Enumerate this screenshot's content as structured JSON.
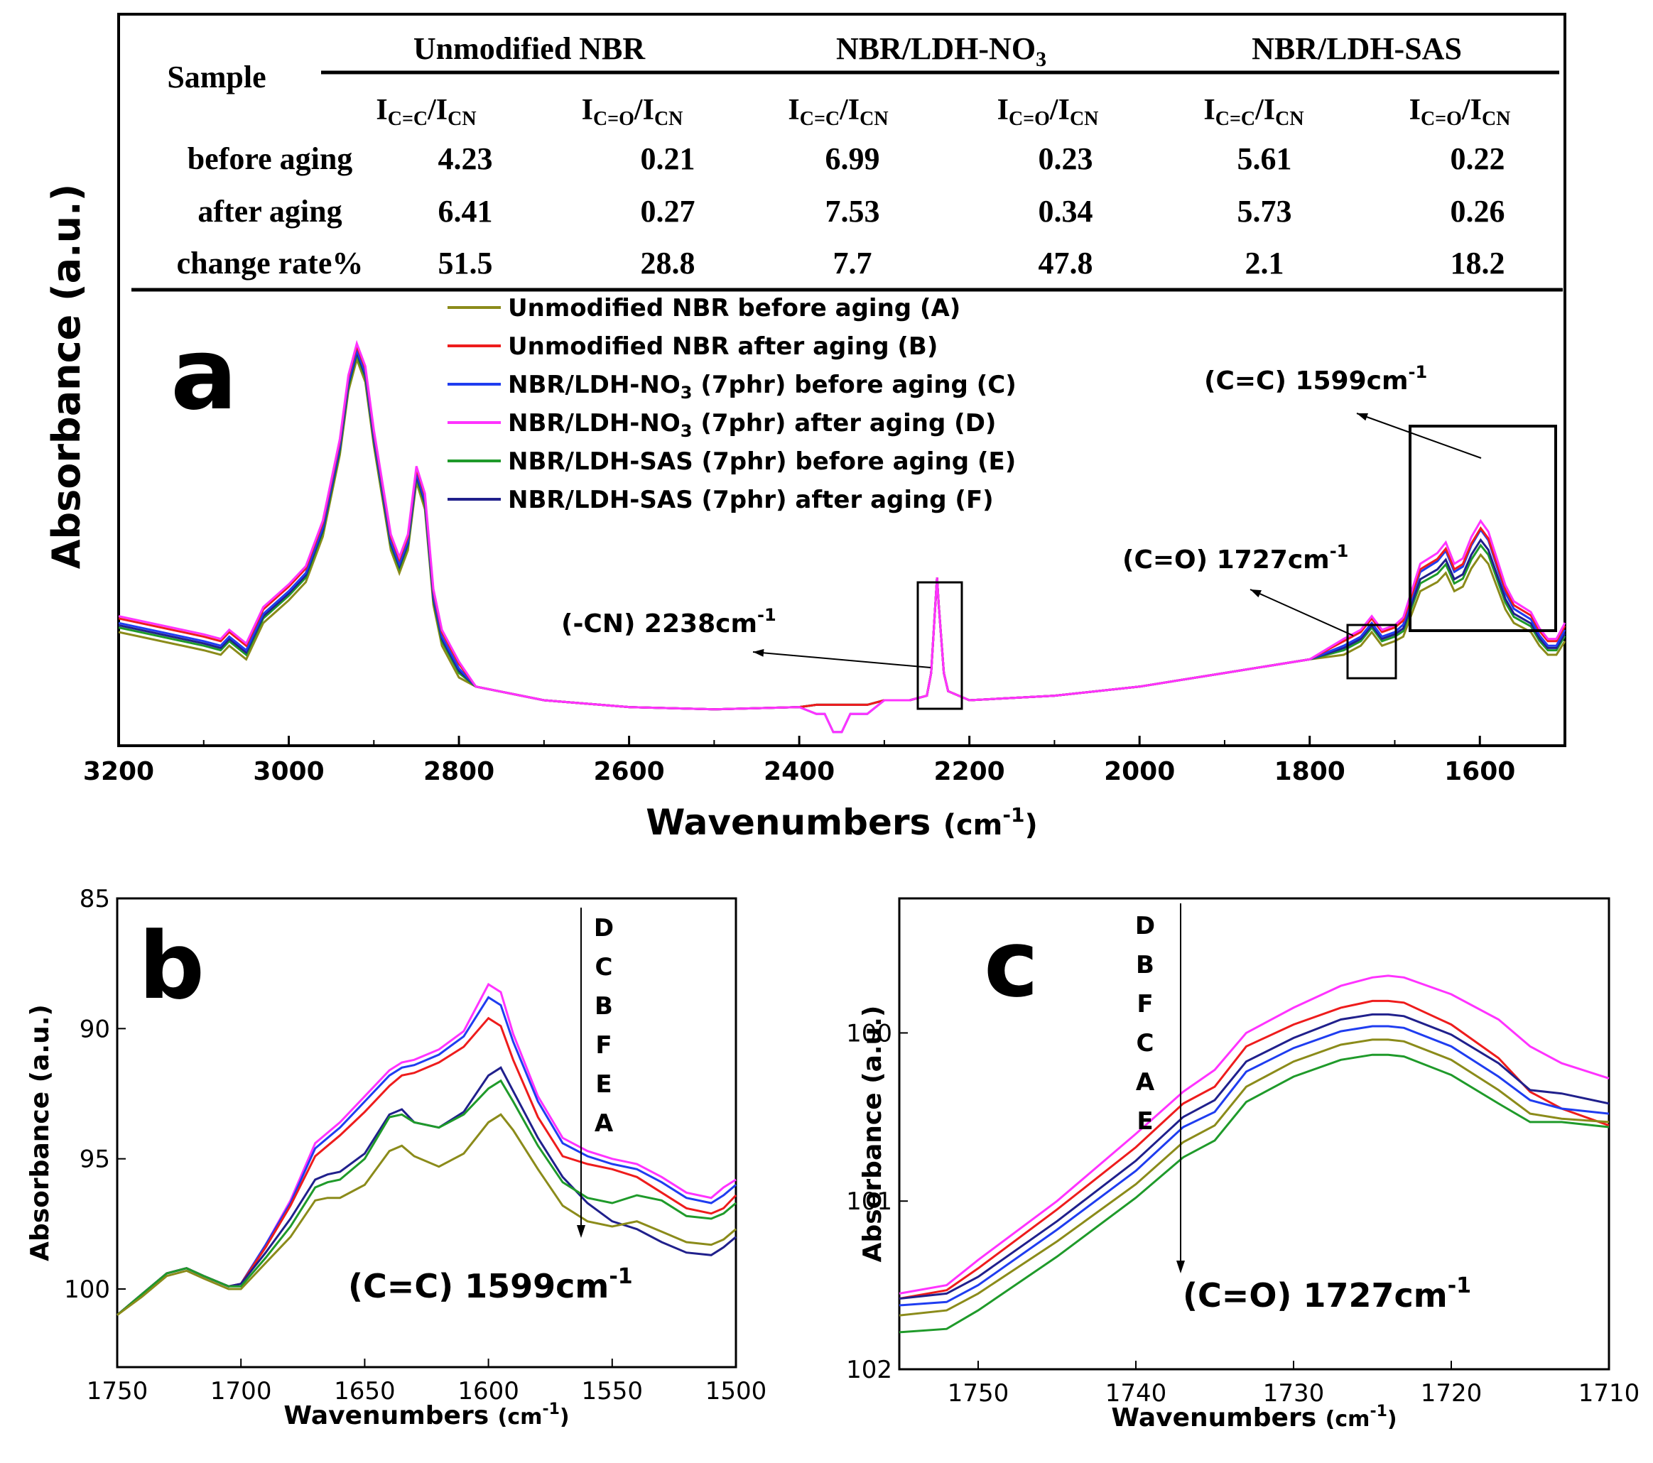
{
  "table": {
    "sample_label": "Sample",
    "groups": [
      "Unmodified NBR",
      "NBR/LDH-NO3",
      "NBR/LDH-SAS"
    ],
    "col_a": {
      "main": "I",
      "sub1": "C=C",
      "slash": "/",
      "main2": "I",
      "sub2": "CN"
    },
    "col_b": {
      "main": "I",
      "sub1": "C=O",
      "slash": "/",
      "main2": "I",
      "sub2": "CN"
    },
    "rows": [
      {
        "label": "before aging",
        "values": [
          "4.23",
          "0.21",
          "6.99",
          "0.23",
          "5.61",
          "0.22"
        ]
      },
      {
        "label": "after aging",
        "values": [
          "6.41",
          "0.27",
          "7.53",
          "0.34",
          "5.73",
          "0.26"
        ]
      },
      {
        "label": "change rate%",
        "values": [
          "51.5",
          "28.8",
          "7.7",
          "47.8",
          "2.1",
          "18.2"
        ]
      }
    ]
  },
  "series_colors": {
    "A": "#8b8b1a",
    "B": "#ee1c1c",
    "C": "#1f3df0",
    "D": "#ff33ff",
    "E": "#1f9a2a",
    "F": "#20208c"
  },
  "chart_data": [
    {
      "id": "a",
      "panel_label": "a",
      "type": "line",
      "xlabel": "Wavenumbers",
      "xunit": "(cm-1)",
      "ylabel": "Absorbance (a.u.)",
      "xlim": [
        3200,
        1500
      ],
      "ylim": [
        0,
        1
      ],
      "xticks": [
        3200,
        3000,
        2800,
        2600,
        2400,
        2200,
        2000,
        1800,
        1600
      ],
      "legend": [
        {
          "key": "A",
          "label": "Unmodified NBR before aging (A)"
        },
        {
          "key": "B",
          "label": "Unmodified NBR after aging  (B)"
        },
        {
          "key": "C",
          "label": "NBR/LDH-NO3 (7phr) before aging  (C)"
        },
        {
          "key": "D",
          "label": "NBR/LDH-NO3 (7phr) after aging (D)"
        },
        {
          "key": "E",
          "label": "NBR/LDH-SAS (7phr) before aging  (E)"
        },
        {
          "key": "F",
          "label": "NBR/LDH-SAS (7phr) after aging  (F)"
        }
      ],
      "annotations": [
        {
          "text": "(-CN)   2238cm-1",
          "peak": 2238
        },
        {
          "text": "(C=O) 1727cm-1",
          "peak": 1727
        },
        {
          "text": "(C=C) 1599cm-1",
          "peak": 1599
        }
      ],
      "base_x": [
        3200,
        3100,
        3080,
        3070,
        3050,
        3030,
        3000,
        2980,
        2960,
        2940,
        2930,
        2920,
        2910,
        2900,
        2880,
        2870,
        2860,
        2850,
        2840,
        2830,
        2820,
        2800,
        2780,
        2700,
        2600,
        2500,
        2400,
        2380,
        2370,
        2360,
        2350,
        2340,
        2320,
        2300,
        2270,
        2250,
        2245,
        2240,
        2238,
        2236,
        2230,
        2225,
        2200,
        2100,
        2000,
        1900,
        1800,
        1760,
        1740,
        1727,
        1715,
        1700,
        1690,
        1680,
        1670,
        1660,
        1650,
        1640,
        1630,
        1620,
        1610,
        1599,
        1590,
        1580,
        1570,
        1560,
        1550,
        1540,
        1530,
        1520,
        1510,
        1500
      ],
      "base_y": [
        0.27,
        0.23,
        0.22,
        0.24,
        0.21,
        0.29,
        0.34,
        0.38,
        0.48,
        0.66,
        0.8,
        0.87,
        0.82,
        0.68,
        0.45,
        0.4,
        0.45,
        0.6,
        0.54,
        0.33,
        0.24,
        0.17,
        0.13,
        0.1,
        0.085,
        0.08,
        0.085,
        0.09,
        0.09,
        0.09,
        0.09,
        0.09,
        0.09,
        0.1,
        0.1,
        0.11,
        0.16,
        0.31,
        0.37,
        0.31,
        0.16,
        0.12,
        0.1,
        0.11,
        0.13,
        0.16,
        0.19,
        0.22,
        0.24,
        0.27,
        0.24,
        0.25,
        0.26,
        0.31,
        0.36,
        0.37,
        0.38,
        0.4,
        0.36,
        0.37,
        0.41,
        0.44,
        0.42,
        0.37,
        0.32,
        0.29,
        0.28,
        0.27,
        0.24,
        0.22,
        0.22,
        0.25
      ],
      "peak_gain": {
        "A": 0.0,
        "B": 0.13,
        "C": 0.16,
        "D": 0.18,
        "E": 0.05,
        "F": 0.08
      },
      "offsets": {
        "A": -0.02,
        "B": 0.01,
        "C": 0.0,
        "D": 0.015,
        "E": -0.01,
        "F": -0.005
      }
    },
    {
      "id": "b",
      "panel_label": "b",
      "type": "line",
      "xlabel": "Wavenumbers",
      "xunit": "(cm-1)",
      "ylabel": "Absorbance (a.u.)",
      "xlim": [
        1750,
        1500
      ],
      "ylim": [
        103,
        85
      ],
      "xticks": [
        1750,
        1700,
        1650,
        1600,
        1550,
        1500
      ],
      "yticks": [
        85,
        90,
        95,
        100
      ],
      "order_letters": [
        "D",
        "C",
        "B",
        "F",
        "E",
        "A"
      ],
      "annotation": "(C=C) 1599cm-1",
      "x": [
        1750,
        1740,
        1730,
        1722,
        1715,
        1705,
        1700,
        1690,
        1680,
        1670,
        1665,
        1660,
        1650,
        1640,
        1635,
        1630,
        1620,
        1610,
        1600,
        1595,
        1590,
        1580,
        1570,
        1560,
        1550,
        1540,
        1530,
        1520,
        1510,
        1505,
        1500
      ],
      "series": [
        {
          "name": "D",
          "values": [
            101.0,
            100.2,
            99.4,
            99.2,
            99.5,
            99.9,
            99.8,
            98.3,
            96.6,
            94.4,
            94.0,
            93.6,
            92.6,
            91.6,
            91.3,
            91.2,
            90.8,
            90.1,
            88.3,
            88.6,
            90.2,
            92.6,
            94.2,
            94.7,
            95.0,
            95.2,
            95.7,
            96.3,
            96.5,
            96.1,
            95.8
          ]
        },
        {
          "name": "C",
          "values": [
            101.0,
            100.2,
            99.4,
            99.2,
            99.5,
            99.9,
            99.8,
            98.3,
            96.7,
            94.6,
            94.2,
            93.8,
            92.8,
            91.8,
            91.5,
            91.4,
            91.0,
            90.3,
            88.8,
            89.1,
            90.5,
            92.8,
            94.4,
            94.9,
            95.2,
            95.4,
            95.9,
            96.5,
            96.7,
            96.4,
            96.0
          ]
        },
        {
          "name": "B",
          "values": [
            101.0,
            100.2,
            99.4,
            99.2,
            99.5,
            99.9,
            99.8,
            98.4,
            96.8,
            94.9,
            94.5,
            94.1,
            93.2,
            92.2,
            91.8,
            91.7,
            91.3,
            90.7,
            89.6,
            89.9,
            91.2,
            93.4,
            94.9,
            95.2,
            95.4,
            95.7,
            96.3,
            96.9,
            97.1,
            96.9,
            96.4
          ]
        },
        {
          "name": "F",
          "values": [
            101.0,
            100.2,
            99.4,
            99.2,
            99.5,
            99.9,
            99.8,
            98.6,
            97.3,
            95.8,
            95.6,
            95.5,
            94.8,
            93.3,
            93.1,
            93.6,
            93.8,
            93.2,
            91.8,
            91.5,
            92.4,
            94.2,
            95.7,
            96.7,
            97.4,
            97.7,
            98.2,
            98.6,
            98.7,
            98.4,
            98.0
          ]
        },
        {
          "name": "E",
          "values": [
            101.0,
            100.2,
            99.4,
            99.2,
            99.5,
            99.9,
            99.9,
            98.8,
            97.6,
            96.1,
            95.9,
            95.8,
            95.0,
            93.4,
            93.3,
            93.6,
            93.8,
            93.3,
            92.3,
            92.0,
            92.8,
            94.5,
            95.9,
            96.5,
            96.7,
            96.4,
            96.6,
            97.2,
            97.3,
            97.1,
            96.7
          ]
        },
        {
          "name": "A",
          "values": [
            101.0,
            100.3,
            99.5,
            99.3,
            99.6,
            100.0,
            100.0,
            99.0,
            98.0,
            96.6,
            96.5,
            96.5,
            96.0,
            94.7,
            94.5,
            94.9,
            95.3,
            94.8,
            93.6,
            93.3,
            93.9,
            95.4,
            96.8,
            97.4,
            97.6,
            97.4,
            97.8,
            98.2,
            98.3,
            98.1,
            97.7
          ]
        }
      ]
    },
    {
      "id": "c",
      "panel_label": "c",
      "type": "line",
      "xlabel": "Wavenumbers",
      "xunit": "(cm-1)",
      "ylabel": "Absorbance (a.u.)",
      "xlim": [
        1755,
        1710
      ],
      "ylim": [
        102,
        99.2
      ],
      "xticks": [
        1750,
        1740,
        1730,
        1720,
        1710
      ],
      "yticks": [
        100,
        101,
        102
      ],
      "order_letters": [
        "D",
        "B",
        "F",
        "C",
        "A",
        "E"
      ],
      "annotation": "(C=O) 1727cm-1",
      "x": [
        1755,
        1752,
        1750,
        1745,
        1740,
        1737,
        1735,
        1733,
        1730,
        1727,
        1725,
        1724,
        1723,
        1720,
        1717,
        1715,
        1713,
        1710
      ],
      "series": [
        {
          "name": "D",
          "values": [
            101.55,
            101.5,
            101.35,
            101.0,
            100.6,
            100.35,
            100.22,
            100.0,
            99.85,
            99.72,
            99.67,
            99.66,
            99.67,
            99.77,
            99.92,
            100.08,
            100.18,
            100.27
          ]
        },
        {
          "name": "B",
          "values": [
            101.58,
            101.53,
            101.4,
            101.05,
            100.68,
            100.42,
            100.32,
            100.08,
            99.95,
            99.85,
            99.81,
            99.81,
            99.82,
            99.95,
            100.15,
            100.35,
            100.45,
            100.55
          ]
        },
        {
          "name": "F",
          "values": [
            101.58,
            101.55,
            101.45,
            101.12,
            100.76,
            100.5,
            100.4,
            100.17,
            100.03,
            99.92,
            99.89,
            99.89,
            99.9,
            100.01,
            100.18,
            100.34,
            100.36,
            100.42
          ]
        },
        {
          "name": "C",
          "values": [
            101.62,
            101.6,
            101.5,
            101.17,
            100.82,
            100.56,
            100.47,
            100.23,
            100.09,
            99.99,
            99.96,
            99.96,
            99.97,
            100.08,
            100.26,
            100.4,
            100.45,
            100.48
          ]
        },
        {
          "name": "A",
          "values": [
            101.68,
            101.65,
            101.55,
            101.24,
            100.9,
            100.65,
            100.55,
            100.32,
            100.17,
            100.07,
            100.04,
            100.04,
            100.05,
            100.16,
            100.34,
            100.48,
            100.51,
            100.53
          ]
        },
        {
          "name": "E",
          "values": [
            101.78,
            101.76,
            101.65,
            101.33,
            100.98,
            100.74,
            100.64,
            100.41,
            100.26,
            100.16,
            100.13,
            100.13,
            100.14,
            100.25,
            100.42,
            100.53,
            100.53,
            100.56
          ]
        }
      ]
    }
  ]
}
